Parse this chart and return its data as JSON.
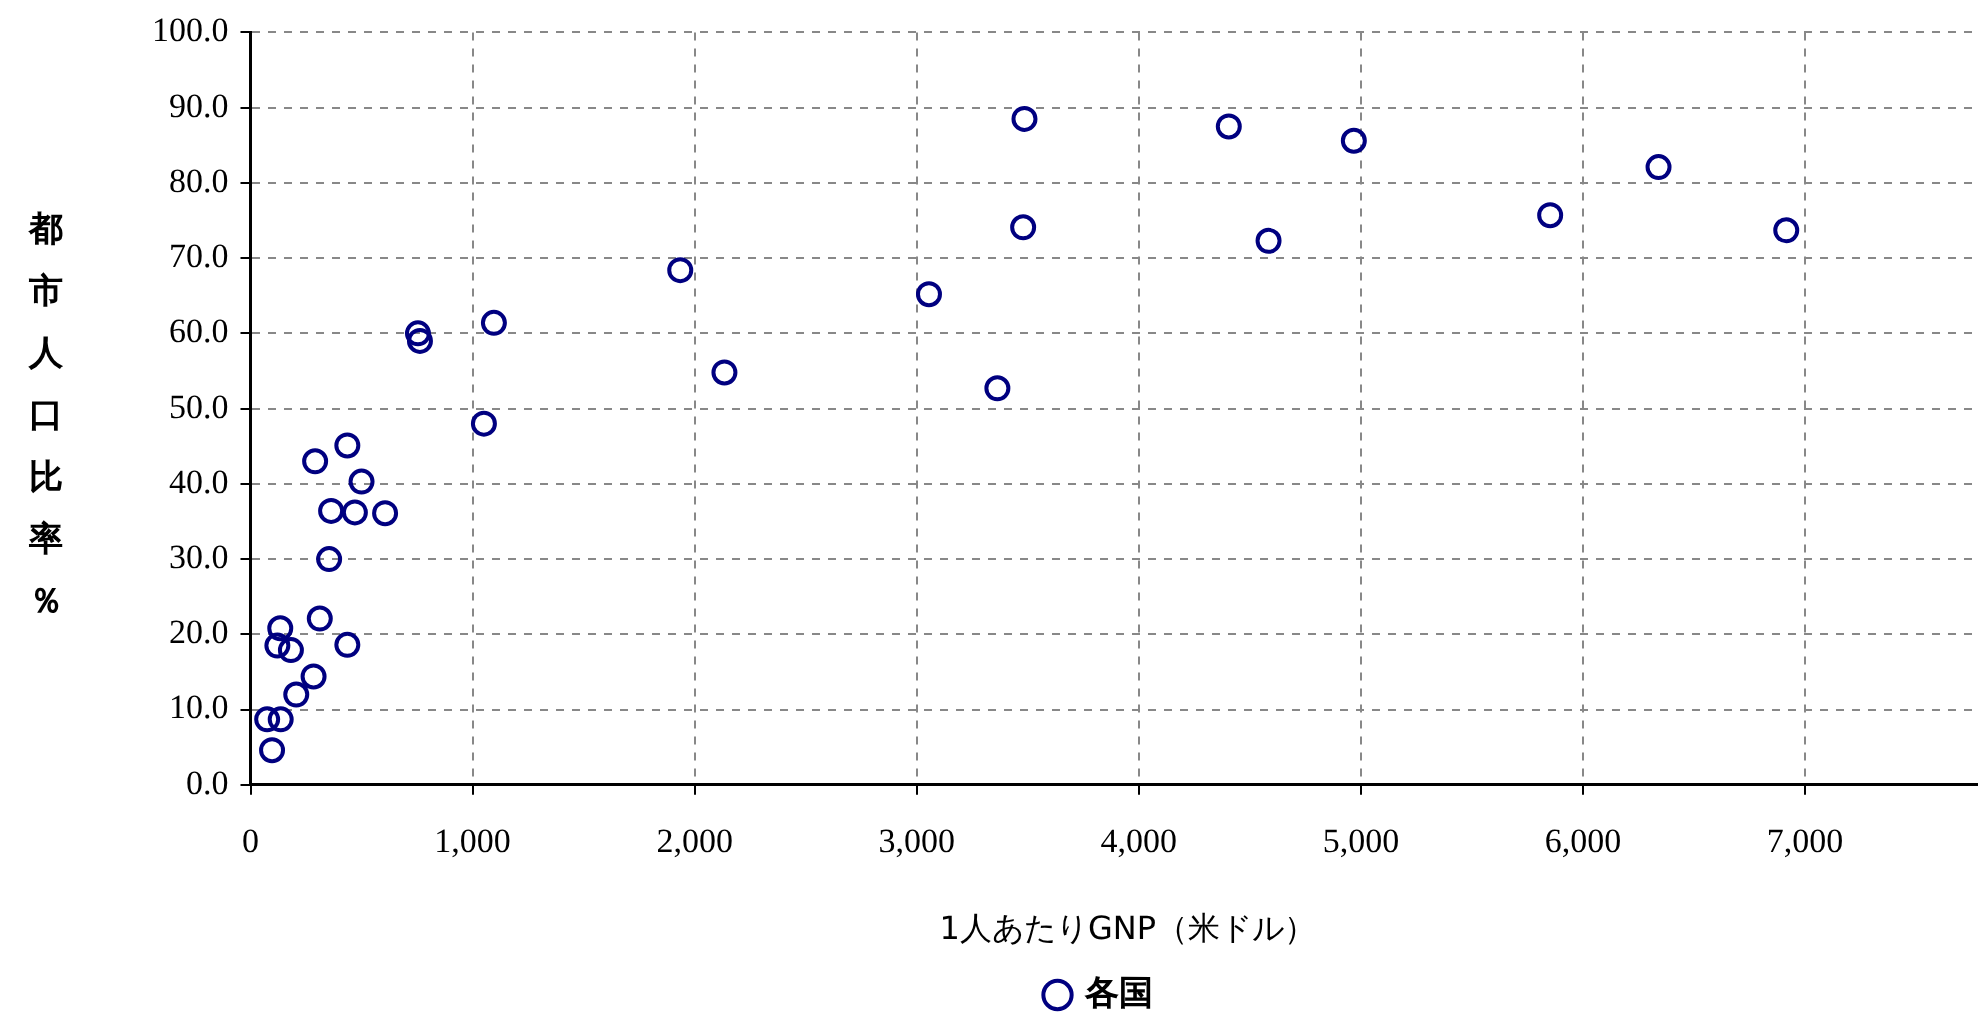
{
  "chart_data": {
    "type": "scatter",
    "xlabel": "1人あたりGNP（米ドル）",
    "ylabel": "都市人口比率％",
    "xlim": [
      0,
      7900
    ],
    "xticks": [
      0,
      {
        "value": 1000,
        "label": "1,000"
      },
      {
        "value": 2000,
        "label": "2,000"
      },
      {
        "value": 3000,
        "label": "3,000"
      },
      {
        "value": 4000,
        "label": "4,000"
      },
      {
        "value": 5000,
        "label": "5,000"
      },
      {
        "value": 6000,
        "label": "6,000"
      },
      {
        "value": 7000,
        "label": "7,000"
      }
    ],
    "ylim": [
      0,
      100
    ],
    "yticks": [
      {
        "value": 0,
        "label": "0.0"
      },
      {
        "value": 10,
        "label": "10.0"
      },
      {
        "value": 20,
        "label": "20.0"
      },
      {
        "value": 30,
        "label": "30.0"
      },
      {
        "value": 40,
        "label": "40.0"
      },
      {
        "value": 50,
        "label": "50.0"
      },
      {
        "value": 60,
        "label": "60.0"
      },
      {
        "value": 70,
        "label": "70.0"
      },
      {
        "value": 80,
        "label": "80.0"
      },
      {
        "value": 90,
        "label": "90.0"
      },
      {
        "value": 100,
        "label": "100.0"
      }
    ],
    "grid": true,
    "legend": "bottom",
    "marker": "circle",
    "series": [
      {
        "name": "各国",
        "color": "#000080",
        "x": [
          754,
          763,
          1096,
          1051,
          436,
          291,
          500,
          363,
          470,
          606,
          354,
          312,
          134,
          121,
          182,
          436,
          284,
          206,
          75,
          136,
          97,
          3485,
          4405,
          4968,
          3479,
          4584,
          1935,
          3055,
          2134,
          3363,
          6340,
          5852,
          6915
        ],
        "values": [
          60.0,
          59.0,
          61.4,
          48.0,
          45.1,
          43.0,
          40.3,
          36.4,
          36.2,
          36.1,
          30.0,
          22.1,
          20.8,
          18.5,
          17.9,
          18.6,
          14.4,
          12.0,
          8.7,
          8.7,
          4.6,
          88.5,
          87.5,
          85.6,
          74.1,
          72.3,
          68.4,
          65.2,
          54.8,
          52.7,
          82.1,
          75.7,
          73.7
        ]
      }
    ]
  }
}
